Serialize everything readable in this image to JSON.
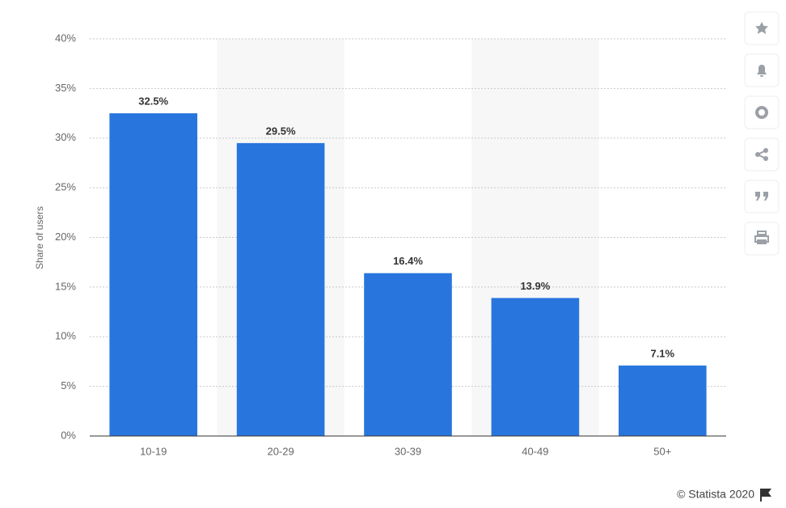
{
  "chart_data": {
    "type": "bar",
    "y_label": "Share of users",
    "categories": [
      "10-19",
      "20-29",
      "30-39",
      "40-49",
      "50+"
    ],
    "values": [
      32.5,
      29.5,
      16.4,
      13.9,
      7.1
    ],
    "value_labels": [
      "32.5%",
      "29.5%",
      "16.4%",
      "13.9%",
      "7.1%"
    ],
    "color": "#2876dd",
    "ylim": [
      0,
      40
    ],
    "yticks": [
      {
        "value": 0,
        "label": "0%"
      },
      {
        "value": 5,
        "label": "5%"
      },
      {
        "value": 10,
        "label": "10%"
      },
      {
        "value": 15,
        "label": "15%"
      },
      {
        "value": 20,
        "label": "20%"
      },
      {
        "value": 25,
        "label": "25%"
      },
      {
        "value": 30,
        "label": "30%"
      },
      {
        "value": 35,
        "label": "35%"
      },
      {
        "value": 40,
        "label": "40%"
      }
    ],
    "grid": true,
    "credit": "© Statista 2020"
  }
}
